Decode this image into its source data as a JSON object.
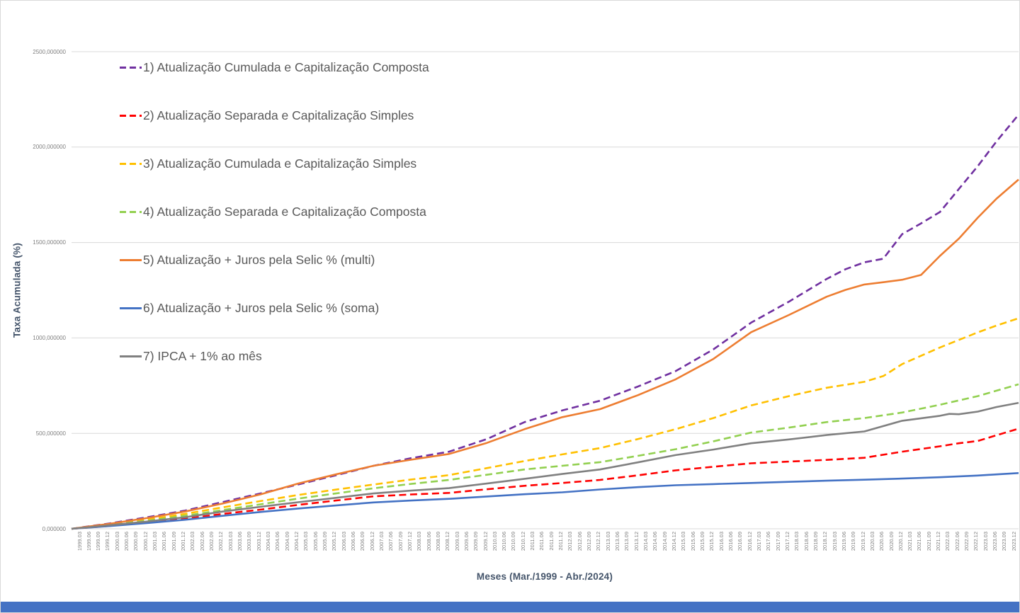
{
  "chart_data": {
    "type": "line",
    "title": "",
    "xlabel": "Meses (Mar./1999 - Abr./2024)",
    "ylabel": "Taxa Acumulada (%)",
    "ylim": [
      0,
      2500
    ],
    "x_month_range": [
      0,
      301
    ],
    "grid": true,
    "legend_position": "overlay-top-left",
    "y_ticks": [
      {
        "value": 2500,
        "label": "2500,000000"
      },
      {
        "value": 2000,
        "label": "2000,000000"
      },
      {
        "value": 1500,
        "label": "1500,000000"
      },
      {
        "value": 1000,
        "label": "1000,000000"
      },
      {
        "value": 500,
        "label": "500,000000"
      },
      {
        "value": 0,
        "label": "0,000000"
      }
    ],
    "x_ticks": [
      "1999.03",
      "1999.06",
      "1999.09",
      "1999.12",
      "2000.03",
      "2000.06",
      "2000.09",
      "2000.12",
      "2001.03",
      "2001.06",
      "2001.09",
      "2001.12",
      "2002.03",
      "2002.06",
      "2002.09",
      "2002.12",
      "2003.03",
      "2003.06",
      "2003.09",
      "2003.12",
      "2004.03",
      "2004.06",
      "2004.09",
      "2004.12",
      "2005.03",
      "2005.06",
      "2005.09",
      "2005.12",
      "2006.03",
      "2006.06",
      "2006.09",
      "2006.12",
      "2007.03",
      "2007.06",
      "2007.09",
      "2007.12",
      "2008.03",
      "2008.06",
      "2008.09",
      "2008.12",
      "2009.03",
      "2009.06",
      "2009.09",
      "2009.12",
      "2010.03",
      "2010.06",
      "2010.09",
      "2010.12",
      "2011.03",
      "2011.06",
      "2011.09",
      "2011.12",
      "2012.03",
      "2012.06",
      "2012.09",
      "2012.12",
      "2013.03",
      "2013.06",
      "2013.09",
      "2013.12",
      "2014.03",
      "2014.06",
      "2014.09",
      "2014.12",
      "2015.03",
      "2015.06",
      "2015.09",
      "2015.12",
      "2016.03",
      "2016.06",
      "2016.09",
      "2016.12",
      "2017.03",
      "2017.06",
      "2017.09",
      "2017.12",
      "2018.03",
      "2018.06",
      "2018.09",
      "2018.12",
      "2019.03",
      "2019.06",
      "2019.09",
      "2019.12",
      "2020.03",
      "2020.06",
      "2020.09",
      "2020.12",
      "2021.03",
      "2021.06",
      "2021.09",
      "2021.12",
      "2022.03",
      "2022.06",
      "2022.09",
      "2022.12",
      "2023.03",
      "2023.06",
      "2023.09",
      "2023.12",
      "2024.03"
    ],
    "series": [
      {
        "name": "1) Atualização Cumulada e Capitalização Composta",
        "color": "#7030A0",
        "dash": true,
        "points": [
          [
            0,
            0
          ],
          [
            12,
            28
          ],
          [
            24,
            60
          ],
          [
            36,
            95
          ],
          [
            48,
            140
          ],
          [
            60,
            185
          ],
          [
            72,
            232
          ],
          [
            84,
            280
          ],
          [
            96,
            330
          ],
          [
            108,
            370
          ],
          [
            120,
            404
          ],
          [
            132,
            470
          ],
          [
            144,
            559
          ],
          [
            156,
            620
          ],
          [
            168,
            671
          ],
          [
            180,
            745
          ],
          [
            192,
            826
          ],
          [
            204,
            940
          ],
          [
            216,
            1080
          ],
          [
            228,
            1190
          ],
          [
            240,
            1309
          ],
          [
            246,
            1360
          ],
          [
            252,
            1396
          ],
          [
            258,
            1415
          ],
          [
            264,
            1544
          ],
          [
            270,
            1600
          ],
          [
            276,
            1660
          ],
          [
            282,
            1780
          ],
          [
            288,
            1900
          ],
          [
            294,
            2030
          ],
          [
            301,
            2170
          ]
        ]
      },
      {
        "name": "2) Atualização Separada e Capitalização Simples",
        "color": "#FF0000",
        "dash": true,
        "points": [
          [
            0,
            0
          ],
          [
            12,
            15
          ],
          [
            24,
            33
          ],
          [
            36,
            52
          ],
          [
            48,
            78
          ],
          [
            60,
            100
          ],
          [
            72,
            125
          ],
          [
            84,
            148
          ],
          [
            96,
            170
          ],
          [
            108,
            180
          ],
          [
            120,
            188
          ],
          [
            132,
            207
          ],
          [
            144,
            225
          ],
          [
            156,
            240
          ],
          [
            168,
            256
          ],
          [
            180,
            280
          ],
          [
            192,
            306
          ],
          [
            204,
            325
          ],
          [
            216,
            343
          ],
          [
            228,
            352
          ],
          [
            240,
            361
          ],
          [
            252,
            372
          ],
          [
            264,
            404
          ],
          [
            276,
            432
          ],
          [
            282,
            448
          ],
          [
            288,
            460
          ],
          [
            294,
            490
          ],
          [
            301,
            525
          ]
        ]
      },
      {
        "name": "3) Atualização Cumulada e Capitalização Simples",
        "color": "#FFC000",
        "dash": true,
        "points": [
          [
            0,
            0
          ],
          [
            12,
            22
          ],
          [
            24,
            48
          ],
          [
            36,
            78
          ],
          [
            48,
            112
          ],
          [
            60,
            145
          ],
          [
            72,
            177
          ],
          [
            84,
            205
          ],
          [
            96,
            232
          ],
          [
            108,
            258
          ],
          [
            120,
            281
          ],
          [
            132,
            318
          ],
          [
            144,
            355
          ],
          [
            156,
            390
          ],
          [
            168,
            423
          ],
          [
            180,
            470
          ],
          [
            192,
            522
          ],
          [
            204,
            580
          ],
          [
            216,
            646
          ],
          [
            228,
            695
          ],
          [
            240,
            739
          ],
          [
            252,
            770
          ],
          [
            258,
            800
          ],
          [
            264,
            863
          ],
          [
            276,
            950
          ],
          [
            288,
            1029
          ],
          [
            294,
            1065
          ],
          [
            301,
            1103
          ]
        ]
      },
      {
        "name": "4) Atualização Separada e Capitalização Composta",
        "color": "#92D050",
        "dash": true,
        "points": [
          [
            0,
            0
          ],
          [
            12,
            20
          ],
          [
            24,
            42
          ],
          [
            36,
            68
          ],
          [
            48,
            98
          ],
          [
            60,
            128
          ],
          [
            72,
            158
          ],
          [
            84,
            185
          ],
          [
            96,
            212
          ],
          [
            108,
            235
          ],
          [
            120,
            256
          ],
          [
            132,
            283
          ],
          [
            144,
            311
          ],
          [
            156,
            330
          ],
          [
            168,
            349
          ],
          [
            180,
            382
          ],
          [
            192,
            417
          ],
          [
            204,
            458
          ],
          [
            216,
            504
          ],
          [
            228,
            530
          ],
          [
            240,
            559
          ],
          [
            252,
            580
          ],
          [
            264,
            609
          ],
          [
            276,
            650
          ],
          [
            288,
            695
          ],
          [
            301,
            757
          ]
        ]
      },
      {
        "name": "5) Atualização + Juros pela Selic % (multi)",
        "color": "#ED7D31",
        "dash": false,
        "points": [
          [
            0,
            0
          ],
          [
            12,
            26
          ],
          [
            24,
            56
          ],
          [
            36,
            90
          ],
          [
            48,
            132
          ],
          [
            60,
            180
          ],
          [
            72,
            237
          ],
          [
            84,
            285
          ],
          [
            96,
            330
          ],
          [
            108,
            362
          ],
          [
            120,
            392
          ],
          [
            132,
            450
          ],
          [
            144,
            522
          ],
          [
            156,
            585
          ],
          [
            168,
            627
          ],
          [
            180,
            700
          ],
          [
            192,
            783
          ],
          [
            204,
            890
          ],
          [
            216,
            1030
          ],
          [
            228,
            1120
          ],
          [
            240,
            1216
          ],
          [
            246,
            1252
          ],
          [
            252,
            1280
          ],
          [
            258,
            1292
          ],
          [
            264,
            1305
          ],
          [
            270,
            1330
          ],
          [
            276,
            1430
          ],
          [
            282,
            1520
          ],
          [
            288,
            1630
          ],
          [
            294,
            1730
          ],
          [
            301,
            1830
          ]
        ]
      },
      {
        "name": "6) Atualização + Juros pela Selic % (soma)",
        "color": "#4472C4",
        "dash": false,
        "points": [
          [
            0,
            0
          ],
          [
            12,
            14
          ],
          [
            24,
            30
          ],
          [
            36,
            47
          ],
          [
            48,
            68
          ],
          [
            60,
            88
          ],
          [
            72,
            106
          ],
          [
            84,
            122
          ],
          [
            96,
            138
          ],
          [
            108,
            148
          ],
          [
            120,
            157
          ],
          [
            132,
            169
          ],
          [
            144,
            181
          ],
          [
            156,
            191
          ],
          [
            168,
            206
          ],
          [
            180,
            218
          ],
          [
            192,
            228
          ],
          [
            204,
            234
          ],
          [
            216,
            240
          ],
          [
            228,
            246
          ],
          [
            240,
            252
          ],
          [
            252,
            257
          ],
          [
            264,
            263
          ],
          [
            276,
            270
          ],
          [
            288,
            279
          ],
          [
            294,
            285
          ],
          [
            301,
            292
          ]
        ]
      },
      {
        "name": "7) IPCA + 1% ao mês",
        "color": "#808080",
        "dash": false,
        "points": [
          [
            0,
            0
          ],
          [
            12,
            18
          ],
          [
            24,
            38
          ],
          [
            36,
            60
          ],
          [
            48,
            90
          ],
          [
            60,
            115
          ],
          [
            72,
            139
          ],
          [
            84,
            162
          ],
          [
            96,
            185
          ],
          [
            108,
            200
          ],
          [
            120,
            213
          ],
          [
            132,
            237
          ],
          [
            144,
            262
          ],
          [
            156,
            287
          ],
          [
            168,
            311
          ],
          [
            180,
            348
          ],
          [
            192,
            386
          ],
          [
            204,
            415
          ],
          [
            216,
            448
          ],
          [
            228,
            468
          ],
          [
            240,
            491
          ],
          [
            252,
            510
          ],
          [
            264,
            566
          ],
          [
            276,
            592
          ],
          [
            279,
            602
          ],
          [
            282,
            600
          ],
          [
            288,
            614
          ],
          [
            294,
            638
          ],
          [
            301,
            660
          ]
        ]
      }
    ]
  },
  "colors": {
    "grid": "#D9D9D9",
    "tick_label": "#7F7F7F",
    "axis_title": "#44546A",
    "legend_text": "#595959",
    "background": "#FFFFFF"
  },
  "footer": {
    "bar_color": "#4472C4"
  }
}
